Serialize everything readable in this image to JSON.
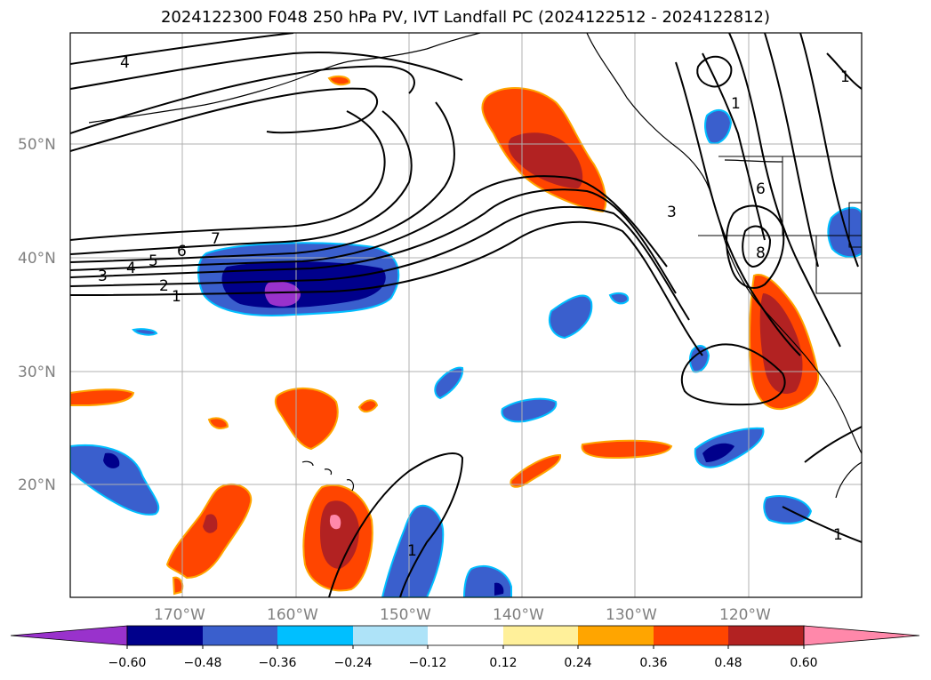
{
  "title": "2024122300 F048 250 hPa PV, IVT Landfall PC (2024122512 - 2024122812)",
  "lat_labels": [
    "50°N",
    "40°N",
    "30°N",
    "20°N"
  ],
  "lon_labels": [
    "170°W",
    "160°W",
    "150°W",
    "140°W",
    "130°W",
    "120°W"
  ],
  "colorbar": {
    "ticks": [
      "−0.60",
      "−0.48",
      "−0.36",
      "−0.24",
      "−0.12",
      "0.12",
      "0.24",
      "0.36",
      "0.48",
      "0.60"
    ],
    "colors": [
      "#9932cc",
      "#00008b",
      "#3a5fcd",
      "#00bfff",
      "#aee3f8",
      "#ffffff",
      "#fff09a",
      "#ffa500",
      "#ff4500",
      "#b22222",
      "#ff88aa"
    ]
  },
  "colors": {
    "contour": "#000000",
    "grid": "#b0b0b0",
    "axis_label": "#808080"
  },
  "contour_labels": [
    "4",
    "7",
    "6",
    "5",
    "4",
    "3",
    "2",
    "1",
    "3",
    "6",
    "8",
    "1",
    "1",
    "1",
    "1"
  ]
}
